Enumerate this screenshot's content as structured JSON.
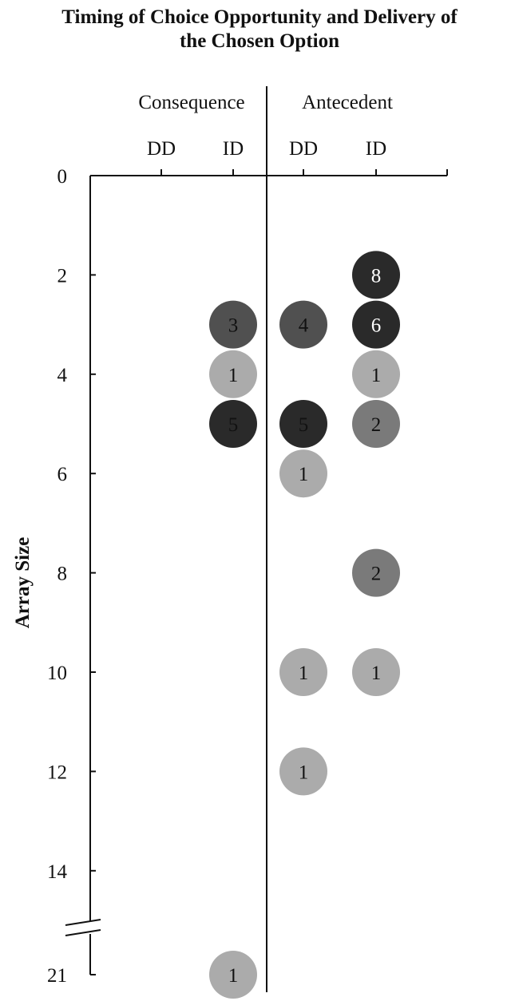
{
  "chart_data": {
    "type": "scatter",
    "title": "Timing of Choice Opportunity and Delivery of the Chosen Option",
    "title_lines": [
      "Timing of Choice Opportunity and Delivery of",
      "the Chosen Option"
    ],
    "ylabel": "Array Size",
    "xlabel": "",
    "groups": [
      {
        "label": "Consequence",
        "categories": [
          "DD",
          "ID"
        ]
      },
      {
        "label": "Antecedent",
        "categories": [
          "DD",
          "ID"
        ]
      }
    ],
    "y_ticks": [
      0,
      2,
      4,
      6,
      8,
      10,
      12,
      14,
      21
    ],
    "y_axis_break": "between 14 and 21",
    "ylim": [
      0,
      21
    ],
    "grid": false,
    "points": [
      {
        "group": "Consequence",
        "category": "ID",
        "y": 3,
        "count": 3
      },
      {
        "group": "Consequence",
        "category": "ID",
        "y": 4,
        "count": 1
      },
      {
        "group": "Consequence",
        "category": "ID",
        "y": 5,
        "count": 5
      },
      {
        "group": "Consequence",
        "category": "ID",
        "y": 21,
        "count": 1
      },
      {
        "group": "Antecedent",
        "category": "DD",
        "y": 3,
        "count": 4
      },
      {
        "group": "Antecedent",
        "category": "DD",
        "y": 5,
        "count": 5
      },
      {
        "group": "Antecedent",
        "category": "DD",
        "y": 6,
        "count": 1
      },
      {
        "group": "Antecedent",
        "category": "DD",
        "y": 10,
        "count": 1
      },
      {
        "group": "Antecedent",
        "category": "DD",
        "y": 12,
        "count": 1
      },
      {
        "group": "Antecedent",
        "category": "ID",
        "y": 2,
        "count": 8
      },
      {
        "group": "Antecedent",
        "category": "ID",
        "y": 3,
        "count": 6
      },
      {
        "group": "Antecedent",
        "category": "ID",
        "y": 4,
        "count": 1
      },
      {
        "group": "Antecedent",
        "category": "ID",
        "y": 5,
        "count": 2
      },
      {
        "group": "Antecedent",
        "category": "ID",
        "y": 8,
        "count": 2
      },
      {
        "group": "Antecedent",
        "category": "ID",
        "y": 10,
        "count": 1
      }
    ],
    "marker_shading": "darker circles indicate higher counts"
  }
}
